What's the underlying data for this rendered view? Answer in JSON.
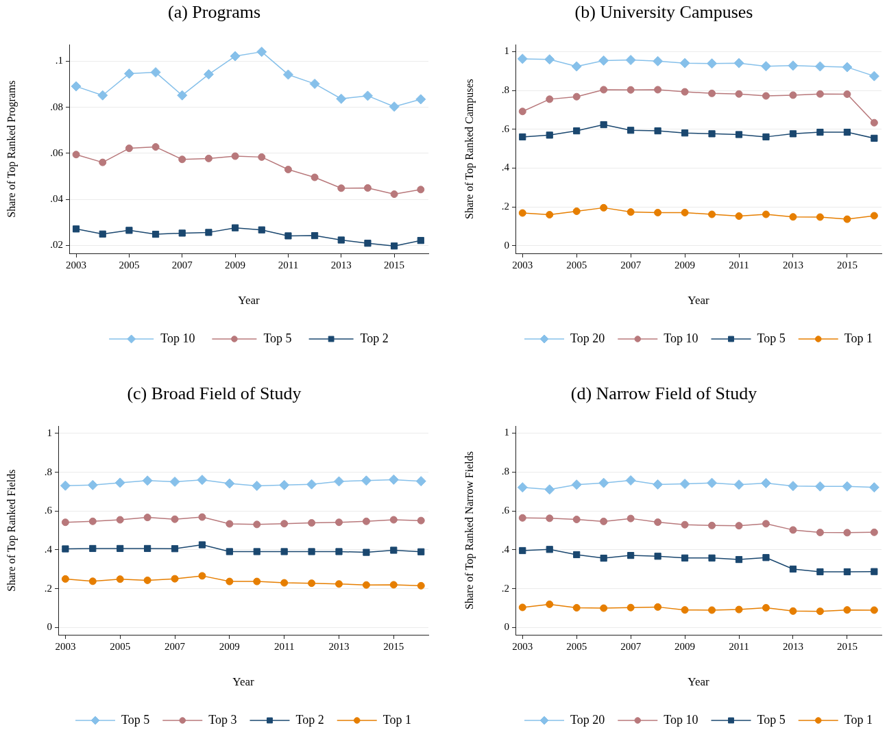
{
  "chart_data": [
    {
      "type": "line",
      "title": "(a) Programs",
      "xlabel": "Year",
      "ylabel": "Share of Top Ranked Programs",
      "x": [
        2003,
        2004,
        2005,
        2006,
        2007,
        2008,
        2009,
        2010,
        2011,
        2012,
        2013,
        2014,
        2015,
        2016
      ],
      "xlim": [
        2002.74,
        2016.29
      ],
      "xticks": [
        2003,
        2005,
        2007,
        2009,
        2011,
        2013,
        2015
      ],
      "ylim": [
        0.0166,
        0.1072
      ],
      "yticks": [
        {
          "value": 0.02,
          "label": ".02"
        },
        {
          "value": 0.04,
          "label": ".04"
        },
        {
          "value": 0.06,
          "label": ".06"
        },
        {
          "value": 0.08,
          "label": ".08"
        },
        {
          "value": 0.1,
          "label": ".1"
        }
      ],
      "grid": "y",
      "legend": "bottom",
      "series": [
        {
          "name": "Top 10",
          "color": "#86c0ea",
          "marker": "diamond",
          "values": [
            0.0891,
            0.0852,
            0.0946,
            0.0952,
            0.0852,
            0.0943,
            0.1022,
            0.1041,
            0.0942,
            0.0902,
            0.0837,
            0.085,
            0.0803,
            0.0835
          ]
        },
        {
          "name": "Top 5",
          "color": "#b8787b",
          "marker": "circle",
          "values": [
            0.0595,
            0.0561,
            0.0622,
            0.0628,
            0.0574,
            0.0578,
            0.0588,
            0.0584,
            0.053,
            0.0496,
            0.0449,
            0.045,
            0.0423,
            0.0443
          ]
        },
        {
          "name": "Top 2",
          "color": "#1a476f",
          "marker": "square",
          "values": [
            0.0272,
            0.025,
            0.0266,
            0.0249,
            0.0254,
            0.0257,
            0.0277,
            0.0268,
            0.0242,
            0.0243,
            0.0224,
            0.021,
            0.0198,
            0.0222
          ]
        }
      ]
    },
    {
      "type": "line",
      "title": "(b) University Campuses",
      "xlabel": "Year",
      "ylabel": "Share of Top Ranked Campuses",
      "x": [
        2003,
        2004,
        2005,
        2006,
        2007,
        2008,
        2009,
        2010,
        2011,
        2012,
        2013,
        2014,
        2015,
        2016
      ],
      "xlim": [
        2002.74,
        2016.27
      ],
      "xticks": [
        2003,
        2005,
        2007,
        2009,
        2011,
        2013,
        2015
      ],
      "ylim": [
        -0.039,
        1.036
      ],
      "yticks": [
        {
          "value": 0,
          "label": "0"
        },
        {
          "value": 0.2,
          "label": ".2"
        },
        {
          "value": 0.4,
          "label": ".4"
        },
        {
          "value": 0.6,
          "label": ".6"
        },
        {
          "value": 0.8,
          "label": ".8"
        },
        {
          "value": 1,
          "label": "1"
        }
      ],
      "grid": "y",
      "legend": "bottom",
      "series": [
        {
          "name": "Top 20",
          "color": "#86c0ea",
          "marker": "diamond",
          "values": [
            0.963,
            0.96,
            0.924,
            0.954,
            0.957,
            0.951,
            0.941,
            0.939,
            0.941,
            0.925,
            0.928,
            0.924,
            0.92,
            0.874
          ]
        },
        {
          "name": "Top 10",
          "color": "#b8787b",
          "marker": "circle",
          "values": [
            0.692,
            0.755,
            0.768,
            0.804,
            0.803,
            0.804,
            0.793,
            0.785,
            0.782,
            0.772,
            0.776,
            0.782,
            0.781,
            0.634
          ]
        },
        {
          "name": "Top 5",
          "color": "#1a476f",
          "marker": "square",
          "values": [
            0.561,
            0.57,
            0.592,
            0.624,
            0.595,
            0.592,
            0.581,
            0.577,
            0.573,
            0.561,
            0.577,
            0.585,
            0.585,
            0.554
          ]
        },
        {
          "name": "Top 1",
          "color": "#e67e00",
          "marker": "circle",
          "values": [
            0.169,
            0.16,
            0.178,
            0.196,
            0.174,
            0.171,
            0.171,
            0.162,
            0.153,
            0.162,
            0.149,
            0.148,
            0.137,
            0.155
          ]
        }
      ]
    },
    {
      "type": "line",
      "title": "(c) Broad Field of Study",
      "xlabel": "Year",
      "ylabel": "Share of Top Ranked Fields",
      "x": [
        2003,
        2004,
        2005,
        2006,
        2007,
        2008,
        2009,
        2010,
        2011,
        2012,
        2013,
        2014,
        2015,
        2016
      ],
      "xlim": [
        2002.74,
        2016.27
      ],
      "xticks": [
        2003,
        2005,
        2007,
        2009,
        2011,
        2013,
        2015
      ],
      "ylim": [
        -0.038,
        1.038
      ],
      "yticks": [
        {
          "value": 0,
          "label": "0"
        },
        {
          "value": 0.2,
          "label": ".2"
        },
        {
          "value": 0.4,
          "label": ".4"
        },
        {
          "value": 0.6,
          "label": ".6"
        },
        {
          "value": 0.8,
          "label": ".8"
        },
        {
          "value": 1,
          "label": "1"
        }
      ],
      "grid": "y",
      "legend": "bottom",
      "series": [
        {
          "name": "Top 5",
          "color": "#86c0ea",
          "marker": "diamond",
          "values": [
            0.731,
            0.734,
            0.746,
            0.757,
            0.751,
            0.761,
            0.742,
            0.73,
            0.734,
            0.738,
            0.753,
            0.757,
            0.762,
            0.754
          ]
        },
        {
          "name": "Top 3",
          "color": "#b8787b",
          "marker": "circle",
          "values": [
            0.542,
            0.547,
            0.555,
            0.567,
            0.558,
            0.569,
            0.534,
            0.531,
            0.535,
            0.539,
            0.542,
            0.547,
            0.555,
            0.551
          ]
        },
        {
          "name": "Top 2",
          "color": "#1a476f",
          "marker": "square",
          "values": [
            0.405,
            0.407,
            0.407,
            0.407,
            0.406,
            0.426,
            0.391,
            0.391,
            0.391,
            0.391,
            0.391,
            0.387,
            0.398,
            0.39
          ]
        },
        {
          "name": "Top 1",
          "color": "#e67e00",
          "marker": "circle",
          "values": [
            0.25,
            0.238,
            0.249,
            0.243,
            0.251,
            0.266,
            0.237,
            0.237,
            0.23,
            0.228,
            0.224,
            0.219,
            0.22,
            0.215
          ]
        }
      ]
    },
    {
      "type": "line",
      "title": "(d) Narrow Field of Study",
      "xlabel": "Year",
      "ylabel": "Share of Top Ranked Narrow Fields",
      "x": [
        2003,
        2004,
        2005,
        2006,
        2007,
        2008,
        2009,
        2010,
        2011,
        2012,
        2013,
        2014,
        2015,
        2016
      ],
      "xlim": [
        2002.74,
        2016.27
      ],
      "xticks": [
        2003,
        2005,
        2007,
        2009,
        2011,
        2013,
        2015
      ],
      "ylim": [
        -0.037,
        1.036
      ],
      "yticks": [
        {
          "value": 0,
          "label": "0"
        },
        {
          "value": 0.2,
          "label": ".2"
        },
        {
          "value": 0.4,
          "label": ".4"
        },
        {
          "value": 0.6,
          "label": ".6"
        },
        {
          "value": 0.8,
          "label": ".8"
        },
        {
          "value": 1,
          "label": "1"
        }
      ],
      "grid": "y",
      "legend": "bottom",
      "series": [
        {
          "name": "Top 20",
          "color": "#86c0ea",
          "marker": "diamond",
          "values": [
            0.721,
            0.71,
            0.735,
            0.744,
            0.757,
            0.736,
            0.739,
            0.744,
            0.735,
            0.743,
            0.728,
            0.726,
            0.726,
            0.721
          ]
        },
        {
          "name": "Top 10",
          "color": "#b8787b",
          "marker": "circle",
          "values": [
            0.564,
            0.562,
            0.556,
            0.546,
            0.561,
            0.542,
            0.529,
            0.525,
            0.524,
            0.534,
            0.502,
            0.489,
            0.488,
            0.49
          ]
        },
        {
          "name": "Top 5",
          "color": "#1a476f",
          "marker": "square",
          "values": [
            0.396,
            0.402,
            0.375,
            0.357,
            0.371,
            0.367,
            0.358,
            0.358,
            0.35,
            0.36,
            0.301,
            0.287,
            0.287,
            0.288
          ]
        },
        {
          "name": "Top 1",
          "color": "#e67e00",
          "marker": "circle",
          "values": [
            0.104,
            0.12,
            0.102,
            0.1,
            0.103,
            0.106,
            0.091,
            0.09,
            0.093,
            0.102,
            0.085,
            0.084,
            0.091,
            0.09
          ]
        }
      ]
    }
  ]
}
